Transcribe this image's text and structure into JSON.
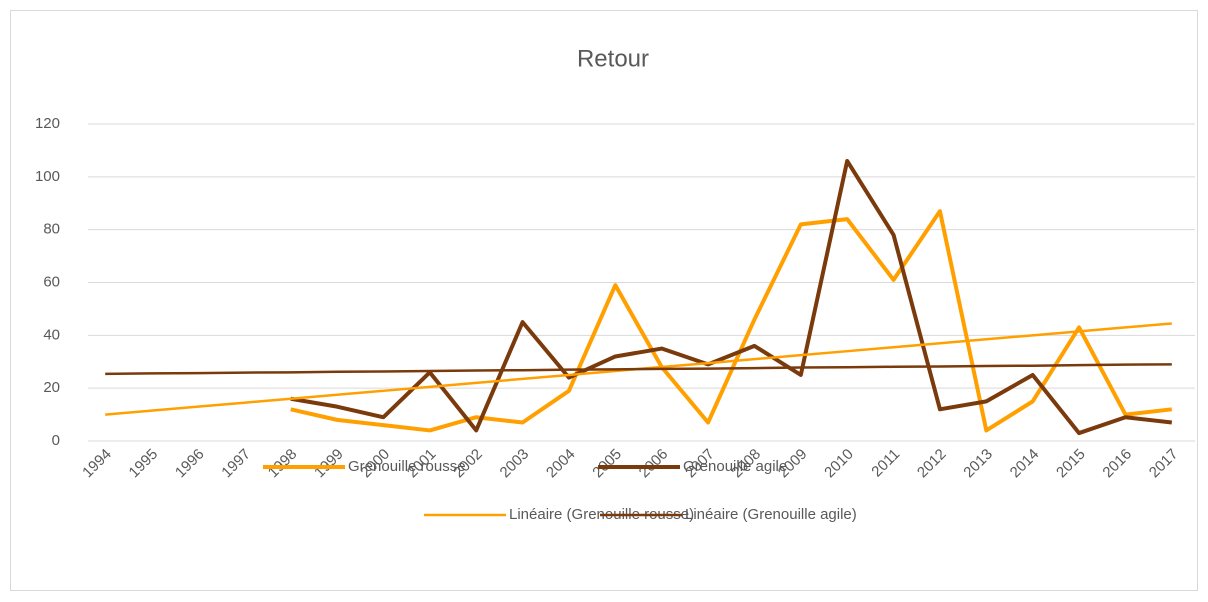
{
  "chart_data": {
    "type": "line",
    "title": "Retour",
    "categories": [
      "1994",
      "1995",
      "1996",
      "1997",
      "1998",
      "1999",
      "2000",
      "2001",
      "2002",
      "2003",
      "2004",
      "2005",
      "2006",
      "2007",
      "2008",
      "2009",
      "2010",
      "2011",
      "2012",
      "2013",
      "2014",
      "2015",
      "2016",
      "2017"
    ],
    "series": [
      {
        "name": "Grenouille rousse",
        "color": "#ffa000",
        "line_width": 4,
        "values": [
          null,
          null,
          null,
          null,
          12,
          8,
          6,
          4,
          9,
          7,
          19,
          59,
          28,
          7,
          46,
          82,
          84,
          61,
          87,
          4,
          15,
          43,
          10,
          12
        ]
      },
      {
        "name": "Grenouille agile",
        "color": "#7b3a0c",
        "line_width": 4,
        "values": [
          null,
          null,
          null,
          null,
          16,
          13,
          9,
          26,
          4,
          45,
          24,
          32,
          35,
          29,
          36,
          25,
          106,
          78,
          12,
          15,
          25,
          3,
          9,
          7
        ]
      },
      {
        "name": "Linéaire (Grenouille rousse)",
        "color": "#ffa000",
        "line_width": 2.5,
        "values": [
          10.0,
          11.5,
          13.0,
          14.5,
          16.0,
          17.5,
          19.0,
          20.5,
          22.0,
          23.5,
          25.0,
          26.5,
          28.0,
          29.5,
          31.0,
          32.5,
          34.0,
          35.5,
          37.0,
          38.5,
          40.0,
          41.5,
          43.0,
          44.5
        ]
      },
      {
        "name": "Linéaire (Grenouille agile)",
        "color": "#7b3a0c",
        "line_width": 2.5,
        "values": [
          25.4,
          25.6,
          25.7,
          25.9,
          26.0,
          26.2,
          26.3,
          26.5,
          26.7,
          26.8,
          27.0,
          27.1,
          27.3,
          27.4,
          27.6,
          27.8,
          27.9,
          28.1,
          28.2,
          28.4,
          28.5,
          28.7,
          28.9,
          29.0
        ]
      }
    ],
    "ylim": [
      0,
      120
    ],
    "yticks": [
      0,
      20,
      40,
      60,
      80,
      100,
      120
    ],
    "grid": true,
    "legend": "bottom"
  }
}
